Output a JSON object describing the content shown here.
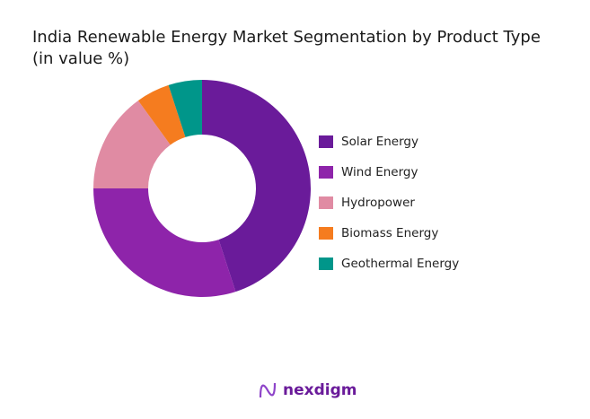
{
  "chart_data": {
    "type": "donut",
    "title": "India Renewable Energy Market Segmentation by Product Type",
    "subtitle": "(in value %)",
    "categories": [
      "Solar Energy",
      "Wind Energy",
      "Hydropower",
      "Biomass Energy",
      "Geothermal Energy"
    ],
    "values": [
      45,
      30,
      15,
      5,
      5
    ],
    "colors": [
      "#6a1b9a",
      "#8e24aa",
      "#e08ba3",
      "#f57c1f",
      "#00968a"
    ],
    "legend_position": "right"
  },
  "brand": {
    "name": "nexdigm",
    "color": "#6a1b9a"
  }
}
